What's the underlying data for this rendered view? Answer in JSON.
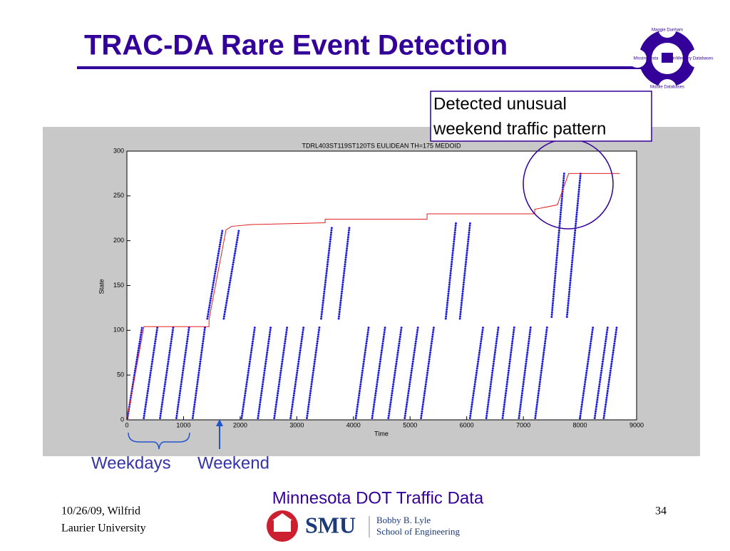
{
  "slide": {
    "title": "TRAC-DA Rare Event Detection",
    "annotation": [
      "Detected unusual",
      "weekend traffic pattern"
    ],
    "weekdays": "Weekdays",
    "weekend": "Weekend",
    "source": "Minnesota DOT Traffic Data",
    "footer_left": [
      "10/26/09, Wilfrid",
      "Laurier University"
    ],
    "page": "34",
    "school": {
      "short": "SMU",
      "line1": "Bobby B. Lyle",
      "line2": "School of Engineering"
    },
    "logo": {
      "top": "Maggie Dunham",
      "left": "Missing Data",
      "right": "MainMemory Databases",
      "bottom": "Mobile Databases"
    }
  },
  "chart_data": {
    "type": "line",
    "title": "TDRL403ST119ST120TS EULIDEAN TH=175 MEDOID",
    "xlabel": "Time",
    "ylabel": "State",
    "xlim": [
      0,
      9000
    ],
    "ylim": [
      0,
      300
    ],
    "xticks": [
      0,
      1000,
      2000,
      3000,
      4000,
      5000,
      6000,
      7000,
      8000,
      9000
    ],
    "yticks": [
      0,
      50,
      100,
      150,
      200,
      250,
      300
    ],
    "series": [
      {
        "color": "#1a1ae0",
        "marker": "dots",
        "x": [
          10,
          270
        ],
        "y": [
          2,
          104
        ]
      },
      {
        "color": "#1a1ae0",
        "marker": "dots",
        "x": [
          298,
          540
        ],
        "y": [
          2,
          104
        ]
      },
      {
        "color": "#1a1ae0",
        "marker": "dots",
        "x": [
          586,
          820
        ],
        "y": [
          2,
          104
        ]
      },
      {
        "color": "#1a1ae0",
        "marker": "dots",
        "x": [
          874,
          1100
        ],
        "y": [
          2,
          104
        ]
      },
      {
        "color": "#1a1ae0",
        "marker": "dots",
        "x": [
          1162,
          1380
        ],
        "y": [
          2,
          104
        ]
      },
      {
        "color": "#1a1ae0",
        "marker": "dots",
        "x": [
          1420,
          1690
        ],
        "y": [
          113,
          213
        ]
      },
      {
        "color": "#1a1ae0",
        "marker": "dots",
        "x": [
          1710,
          1980
        ],
        "y": [
          113,
          213
        ]
      },
      {
        "color": "#1a1ae0",
        "marker": "dots",
        "x": [
          2026,
          2260
        ],
        "y": [
          2,
          104
        ]
      },
      {
        "color": "#1a1ae0",
        "marker": "dots",
        "x": [
          2314,
          2540
        ],
        "y": [
          2,
          104
        ]
      },
      {
        "color": "#1a1ae0",
        "marker": "dots",
        "x": [
          2602,
          2830
        ],
        "y": [
          2,
          104
        ]
      },
      {
        "color": "#1a1ae0",
        "marker": "dots",
        "x": [
          2890,
          3120
        ],
        "y": [
          2,
          104
        ]
      },
      {
        "color": "#1a1ae0",
        "marker": "dots",
        "x": [
          3178,
          3400
        ],
        "y": [
          2,
          104
        ]
      },
      {
        "color": "#1a1ae0",
        "marker": "dots",
        "x": [
          3430,
          3620
        ],
        "y": [
          113,
          216
        ]
      },
      {
        "color": "#1a1ae0",
        "marker": "dots",
        "x": [
          3740,
          3930
        ],
        "y": [
          113,
          216
        ]
      },
      {
        "color": "#1a1ae0",
        "marker": "dots",
        "x": [
          4042,
          4270
        ],
        "y": [
          2,
          104
        ]
      },
      {
        "color": "#1a1ae0",
        "marker": "dots",
        "x": [
          4330,
          4560
        ],
        "y": [
          2,
          104
        ]
      },
      {
        "color": "#1a1ae0",
        "marker": "dots",
        "x": [
          4618,
          4850
        ],
        "y": [
          2,
          104
        ]
      },
      {
        "color": "#1a1ae0",
        "marker": "dots",
        "x": [
          4906,
          5140
        ],
        "y": [
          2,
          104
        ]
      },
      {
        "color": "#1a1ae0",
        "marker": "dots",
        "x": [
          5194,
          5420
        ],
        "y": [
          2,
          104
        ]
      },
      {
        "color": "#1a1ae0",
        "marker": "dots",
        "x": [
          5630,
          5810
        ],
        "y": [
          113,
          220
        ]
      },
      {
        "color": "#1a1ae0",
        "marker": "dots",
        "x": [
          5880,
          6060
        ],
        "y": [
          113,
          220
        ]
      },
      {
        "color": "#1a1ae0",
        "marker": "dots",
        "x": [
          6058,
          6290
        ],
        "y": [
          2,
          104
        ]
      },
      {
        "color": "#1a1ae0",
        "marker": "dots",
        "x": [
          6346,
          6560
        ],
        "y": [
          2,
          104
        ]
      },
      {
        "color": "#1a1ae0",
        "marker": "dots",
        "x": [
          6634,
          6840
        ],
        "y": [
          2,
          104
        ]
      },
      {
        "color": "#1a1ae0",
        "marker": "dots",
        "x": [
          6922,
          7130
        ],
        "y": [
          2,
          104
        ]
      },
      {
        "color": "#1a1ae0",
        "marker": "dots",
        "x": [
          7210,
          7420
        ],
        "y": [
          2,
          104
        ]
      },
      {
        "color": "#1a1ae0",
        "marker": "dots",
        "x": [
          7500,
          7720
        ],
        "y": [
          115,
          275
        ]
      },
      {
        "color": "#1a1ae0",
        "marker": "dots",
        "x": [
          7770,
          8010
        ],
        "y": [
          115,
          275
        ]
      },
      {
        "color": "#1a1ae0",
        "marker": "dots",
        "x": [
          8000,
          8230
        ],
        "y": [
          2,
          104
        ]
      },
      {
        "color": "#1a1ae0",
        "marker": "dots",
        "x": [
          8260,
          8490
        ],
        "y": [
          2,
          104
        ]
      },
      {
        "color": "#1a1ae0",
        "marker": "dots",
        "x": [
          8420,
          8650
        ],
        "y": [
          2,
          104
        ]
      },
      {
        "color": "#e02020",
        "marker": "line",
        "x": [
          0,
          300,
          1450,
          1450,
          1750,
          1850,
          2200,
          3500,
          3500,
          5300,
          5300,
          7200,
          7200,
          7600,
          7800,
          8700
        ],
        "y": [
          0,
          104,
          104,
          112,
          212,
          216,
          218,
          220,
          224,
          224,
          230,
          230,
          235,
          240,
          275,
          275
        ]
      }
    ]
  }
}
